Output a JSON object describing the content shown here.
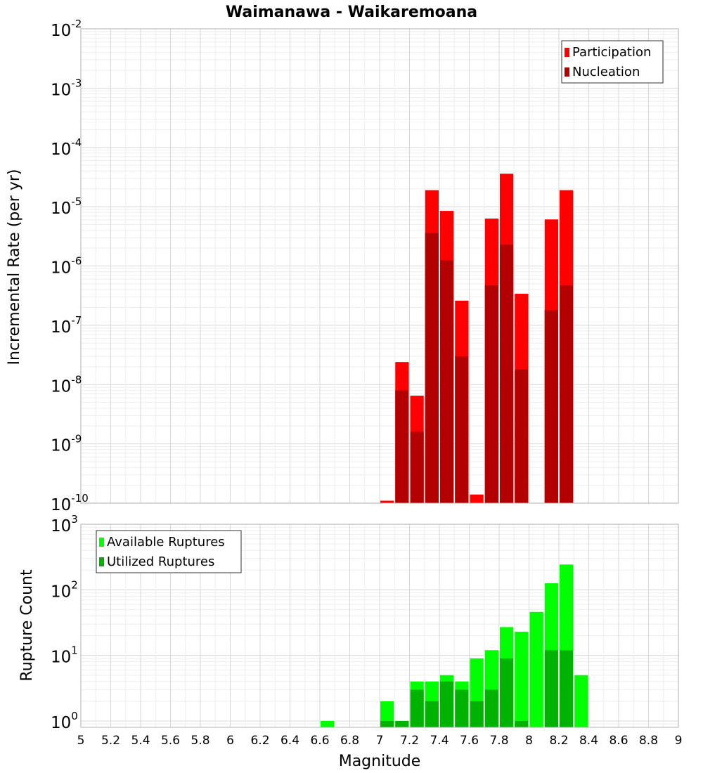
{
  "chart_data": [
    {
      "type": "bar",
      "title": "Waimanawa - Waikaremoana",
      "xlabel": "",
      "ylabel": "Incremental Rate (per yr)",
      "yscale": "log",
      "ylim": [
        1e-10,
        0.01
      ],
      "xlim": [
        5,
        9
      ],
      "bar_width": 0.1,
      "legend_position": "top-right",
      "grid": true,
      "series": [
        {
          "name": "Participation",
          "color": "#ff0000",
          "x": [
            7.05,
            7.15,
            7.25,
            7.35,
            7.45,
            7.55,
            7.65,
            7.75,
            7.85,
            7.95,
            8.15,
            8.25
          ],
          "values": [
            1.1e-10,
            2.4e-08,
            6.5e-09,
            1.9e-05,
            8.5e-06,
            2.6e-07,
            1.4e-10,
            6.3e-06,
            3.6e-05,
            3.4e-07,
            6.1e-06,
            1.9e-05
          ]
        },
        {
          "name": "Nucleation",
          "color": "#b30000",
          "x": [
            7.15,
            7.25,
            7.35,
            7.45,
            7.55,
            7.75,
            7.85,
            7.95,
            8.15,
            8.25
          ],
          "values": [
            8e-09,
            1.6e-09,
            3.6e-06,
            1.25e-06,
            3e-08,
            4.7e-07,
            2.3e-06,
            1.8e-08,
            1.8e-07,
            4.7e-07
          ]
        }
      ]
    },
    {
      "type": "bar",
      "title": "",
      "xlabel": "Magnitude",
      "ylabel": "Rupture Count",
      "yscale": "log",
      "ylim": [
        0.8,
        1000
      ],
      "xlim": [
        5,
        9
      ],
      "bar_width": 0.1,
      "legend_position": "top-left",
      "grid": true,
      "series": [
        {
          "name": "Available Ruptures",
          "color": "#00ff00",
          "x": [
            6.65,
            7.05,
            7.15,
            7.25,
            7.35,
            7.45,
            7.55,
            7.65,
            7.75,
            7.85,
            7.95,
            8.05,
            8.15,
            8.25,
            8.35
          ],
          "values": [
            1,
            2,
            1,
            4,
            4,
            5,
            4,
            9,
            12,
            27,
            23,
            46,
            126,
            243,
            5
          ]
        },
        {
          "name": "Utilized Ruptures",
          "color": "#00b300",
          "x": [
            7.05,
            7.15,
            7.25,
            7.35,
            7.45,
            7.55,
            7.65,
            7.75,
            7.85,
            7.95,
            8.15,
            8.25
          ],
          "values": [
            1,
            1,
            3,
            2,
            4,
            3,
            2,
            3,
            9,
            1,
            12,
            12
          ]
        }
      ]
    }
  ],
  "x_ticks": [
    "5",
    "5.2",
    "5.4",
    "5.6",
    "5.8",
    "6",
    "6.2",
    "6.4",
    "6.6",
    "6.8",
    "7",
    "7.2",
    "7.4",
    "7.6",
    "7.8",
    "8",
    "8.2",
    "8.4",
    "8.6",
    "8.8",
    "9"
  ],
  "top_y_ticks": {
    "base": "10",
    "exponents": [
      "-2",
      "-3",
      "-4",
      "-5",
      "-6",
      "-7",
      "-8",
      "-9",
      "-10"
    ]
  },
  "bottom_y_ticks": {
    "base": "10",
    "exponents": [
      "3",
      "2",
      "1",
      "0"
    ]
  }
}
